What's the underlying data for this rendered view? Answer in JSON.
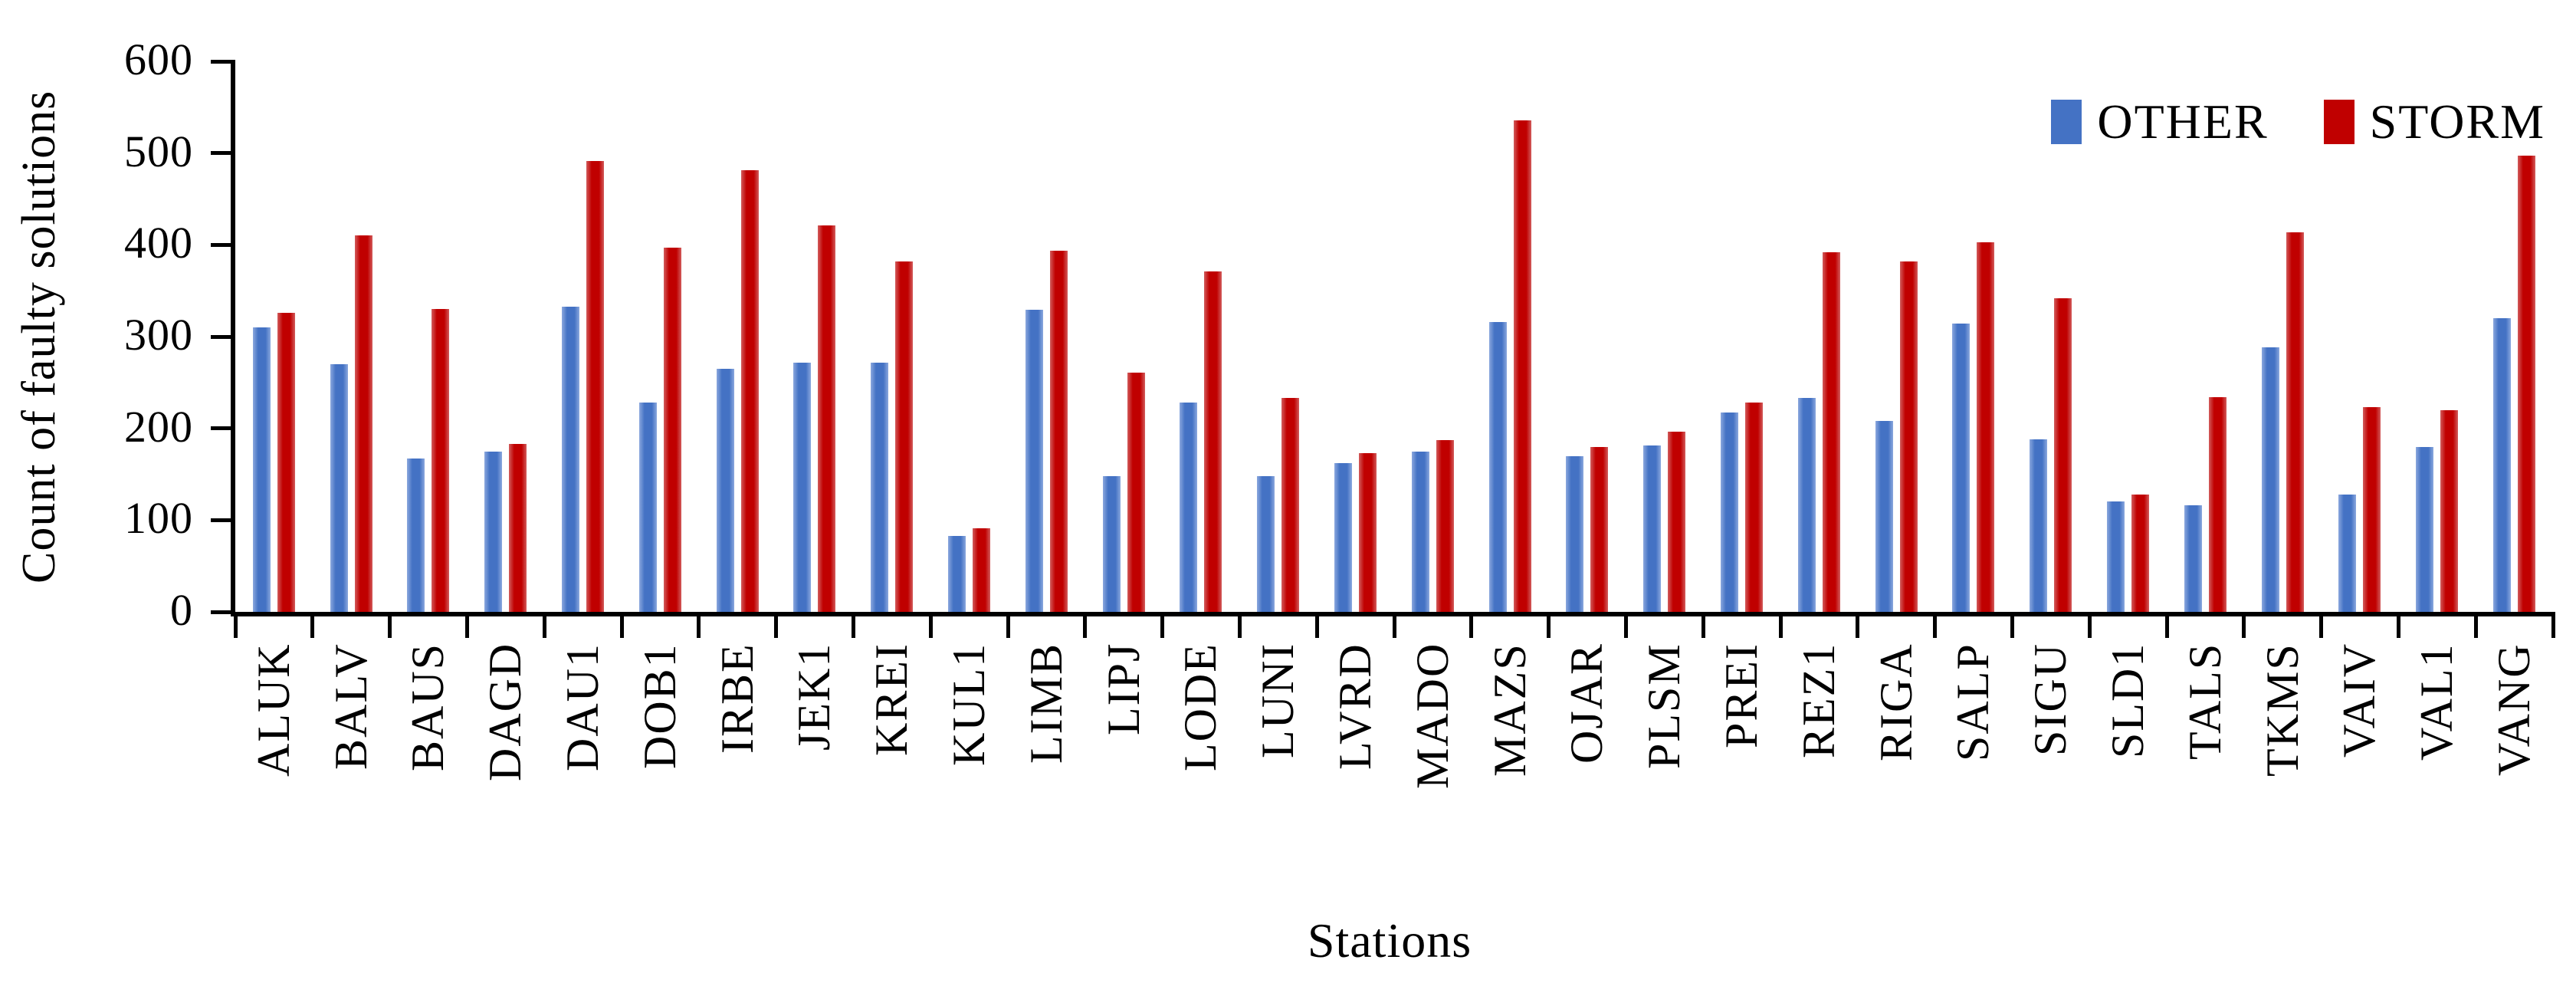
{
  "chart_data": {
    "type": "bar",
    "title": "",
    "xlabel": "Stations",
    "ylabel": "Count of faulty solutions",
    "ylim": [
      0,
      600
    ],
    "yticks": [
      0,
      100,
      200,
      300,
      400,
      500,
      600
    ],
    "grid": false,
    "legend_position": "top-right",
    "categories": [
      "ALUK",
      "BALV",
      "BAUS",
      "DAGD",
      "DAU1",
      "DOB1",
      "IRBE",
      "JEK1",
      "KREI",
      "KUL1",
      "LIMB",
      "LIPJ",
      "LODE",
      "LUNI",
      "LVRD",
      "MADO",
      "MAZS",
      "OJAR",
      "PLSM",
      "PREI",
      "REZ1",
      "RIGA",
      "SALP",
      "SIGU",
      "SLD1",
      "TALS",
      "TKMS",
      "VAIV",
      "VAL1",
      "VANG"
    ],
    "series": [
      {
        "name": "OTHER",
        "color": "#4472C4",
        "values": [
          310,
          270,
          167,
          175,
          333,
          228,
          265,
          272,
          272,
          83,
          329,
          148,
          228,
          148,
          162,
          175,
          316,
          170,
          181,
          217,
          233,
          208,
          314,
          188,
          120,
          116,
          288,
          128,
          180,
          320
        ]
      },
      {
        "name": "STORM",
        "color": "#C00000",
        "values": [
          326,
          410,
          330,
          183,
          491,
          397,
          481,
          421,
          382,
          91,
          394,
          261,
          371,
          233,
          173,
          187,
          536,
          180,
          196,
          228,
          392,
          382,
          403,
          342,
          128,
          234,
          414,
          223,
          220,
          497
        ]
      }
    ]
  },
  "axis_color": "#000000",
  "background": "#ffffff"
}
